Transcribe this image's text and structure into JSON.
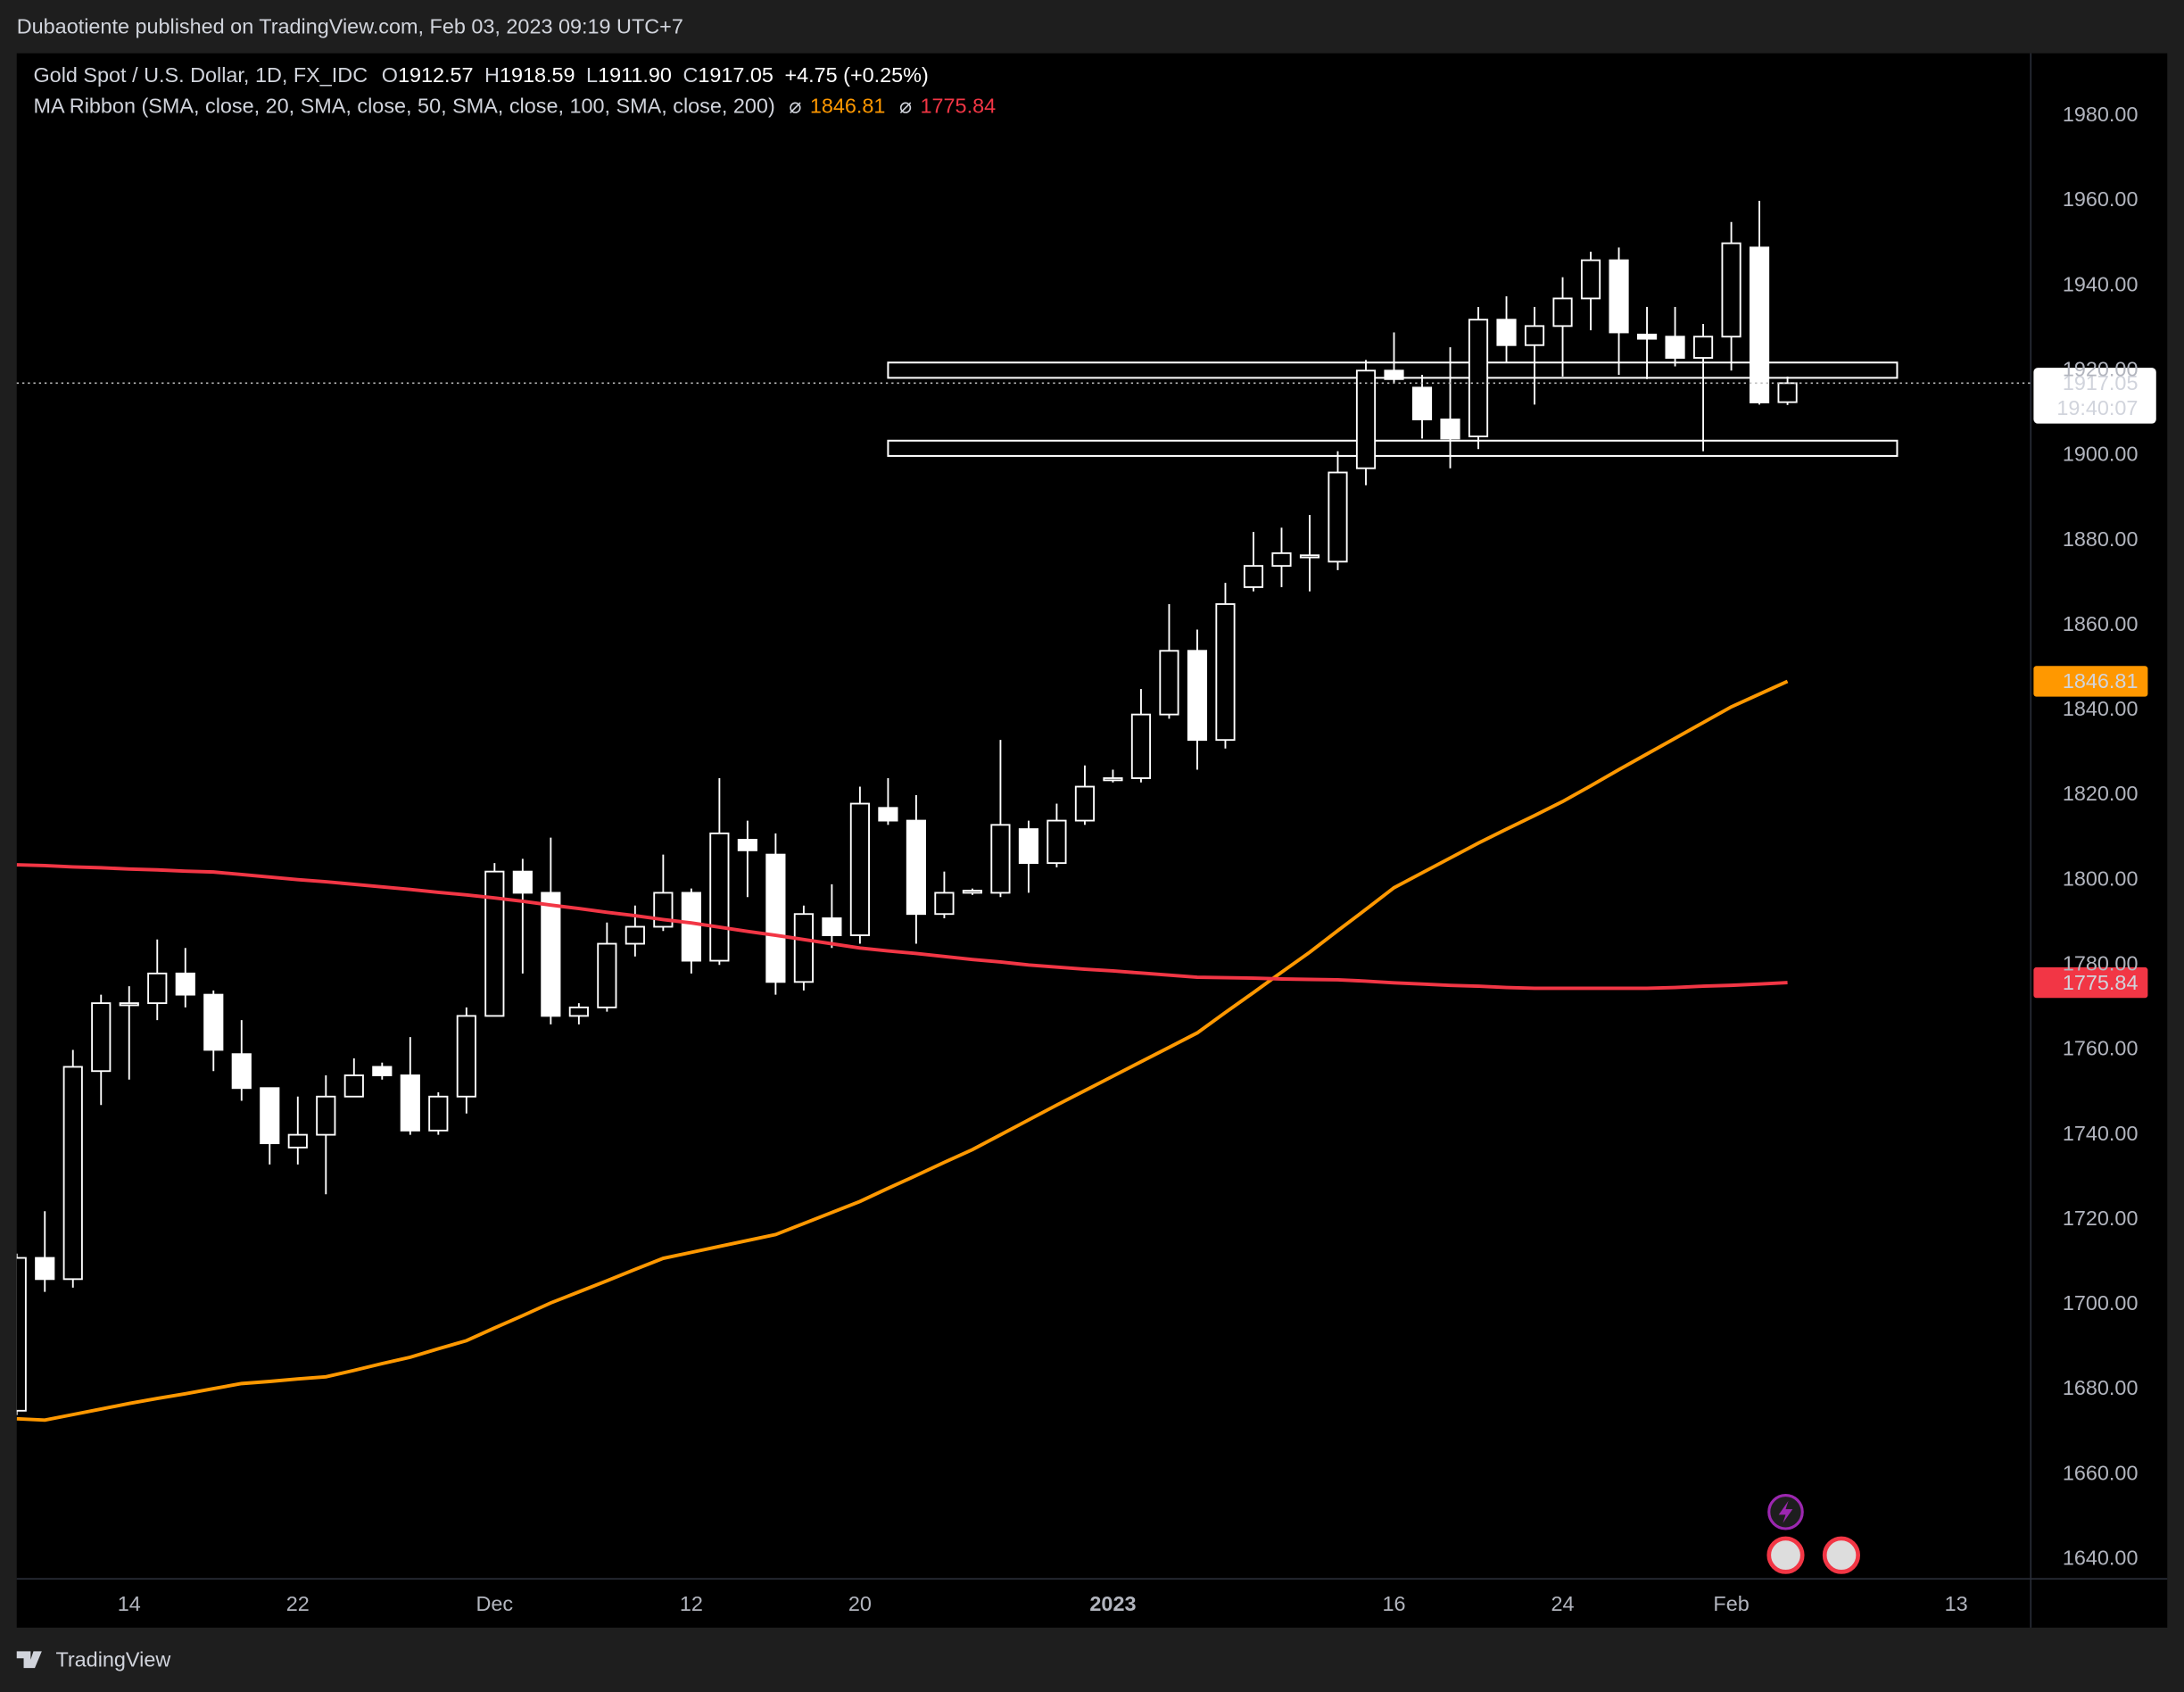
{
  "header": {
    "published": "Dubaotiente published on TradingView.com, Feb 03, 2023 09:19 UTC+7"
  },
  "footer": {
    "brand": "TradingView"
  },
  "chart_data": {
    "type": "candlestick",
    "symbol": "Gold Spot / U.S. Dollar, 1D, FX_IDC",
    "legend_keys": [
      "O",
      "H",
      "L",
      "C"
    ],
    "last_labels": [
      "1912.57",
      "1918.59",
      "1911.90",
      "1917.05"
    ],
    "change": "+4.75 (+0.25%)",
    "indicator": "MA Ribbon (SMA, close, 20, SMA, close, 50, SMA, close, 100, SMA, close, 200)",
    "indicator_symbol": "⌀",
    "countdown": "19:40:07",
    "up_color": "#000000",
    "down_color": "#ffffff",
    "categories": [
      null,
      null,
      null,
      null,
      "14",
      null,
      null,
      null,
      null,
      null,
      "22",
      null,
      null,
      null,
      null,
      null,
      null,
      "Dec",
      null,
      null,
      null,
      null,
      null,
      null,
      "12",
      null,
      null,
      null,
      null,
      null,
      "20",
      null,
      null,
      null,
      null,
      null,
      null,
      null,
      null,
      "2023",
      null,
      null,
      null,
      null,
      null,
      null,
      null,
      null,
      null,
      "16",
      null,
      null,
      null,
      null,
      null,
      "24",
      null,
      null,
      null,
      null,
      null,
      "Feb",
      null,
      null,
      null,
      null,
      null,
      null,
      null,
      "13"
    ],
    "open": [
      1675,
      1711,
      1706,
      1755,
      1771,
      1771,
      1778,
      1773,
      1759,
      1751,
      1737,
      1740,
      1749,
      1756,
      1754,
      1741,
      1749,
      1768,
      1802,
      1797,
      1768,
      1770,
      1785,
      1789,
      1797,
      1781,
      1809.5,
      1806,
      1776,
      1791,
      1787,
      1817,
      1814,
      1792,
      1797,
      1797,
      1812,
      1804,
      1814,
      1823.5,
      1824,
      1839,
      1854,
      1833,
      1869,
      1874,
      1876,
      1875,
      1897,
      1920,
      1916,
      1908.5,
      1904.5,
      1932,
      1926,
      1930.5,
      1937,
      1946,
      1928.5,
      1928,
      1923,
      1928,
      1949,
      1912.57,
      null,
      null,
      null,
      null,
      null,
      null
    ],
    "high": [
      1712,
      1722,
      1760,
      1773,
      1775,
      1786,
      1784,
      1774,
      1767,
      1751,
      1749,
      1754,
      1758,
      1757,
      1763,
      1750,
      1770,
      1804,
      1805,
      1810,
      1771,
      1790,
      1794,
      1806,
      1798,
      1824,
      1814,
      1811,
      1794,
      1799,
      1822,
      1824,
      1820,
      1802,
      1798,
      1833,
      1814,
      1818,
      1827,
      1826,
      1845,
      1865,
      1859,
      1870,
      1882,
      1883,
      1886,
      1901,
      1922.5,
      1929,
      1919,
      1925.5,
      1935,
      1937.5,
      1935,
      1942,
      1948,
      1949,
      1935,
      1935,
      1931,
      1955,
      1960,
      1918.59,
      null,
      null,
      null,
      null,
      null,
      null
    ],
    "low": [
      1674,
      1703,
      1704,
      1747,
      1753,
      1767,
      1770,
      1755,
      1748,
      1733,
      1733,
      1726,
      1749,
      1753,
      1740,
      1740,
      1745,
      1768,
      1778,
      1766,
      1766,
      1769,
      1782,
      1788,
      1778,
      1780,
      1796,
      1773,
      1774,
      1784,
      1785,
      1813,
      1785,
      1791,
      1796.5,
      1796,
      1797,
      1803,
      1813,
      1823,
      1823,
      1838,
      1826,
      1831,
      1868,
      1869,
      1868,
      1873,
      1893,
      1917,
      1904,
      1897,
      1901.5,
      1922,
      1912,
      1918.6,
      1929.5,
      1919,
      1918,
      1921,
      1901,
      1920,
      1912,
      1911.9,
      null,
      null,
      null,
      null,
      null,
      null
    ],
    "close": [
      1711,
      1706,
      1756,
      1771,
      1771,
      1778,
      1773,
      1760,
      1751,
      1738,
      1740,
      1749,
      1754,
      1754,
      1741,
      1749,
      1768,
      1802,
      1797,
      1768,
      1770,
      1785,
      1789,
      1797,
      1781,
      1811,
      1807,
      1776,
      1792,
      1787,
      1818,
      1814,
      1792,
      1797,
      1797.5,
      1813,
      1804,
      1814,
      1822,
      1824,
      1839,
      1854,
      1833,
      1865,
      1874,
      1877,
      1876.5,
      1896,
      1920,
      1918,
      1908.5,
      1904,
      1932,
      1926,
      1930.5,
      1937,
      1946,
      1929,
      1927.5,
      1923,
      1928,
      1950,
      1912.5,
      1917.05,
      null,
      null,
      null,
      null,
      null,
      null
    ],
    "series": [
      {
        "color": "#ff9800",
        "values": [
          1673.1,
          1672.8,
          1674.1,
          1675.4,
          1676.7,
          1677.9,
          1679.0,
          1680.2,
          1681.4,
          1681.9,
          1682.5,
          1683.0,
          1684.5,
          1686.1,
          1687.6,
          1689.6,
          1691.5,
          1694.5,
          1697.4,
          1700.4,
          1703.0,
          1705.6,
          1708.3,
          1710.9,
          1712.3,
          1713.7,
          1715.1,
          1716.5,
          1719.1,
          1721.7,
          1724.3,
          1727.4,
          1730.4,
          1733.5,
          1736.5,
          1740.0,
          1743.5,
          1747.0,
          1750.4,
          1753.8,
          1757.2,
          1760.6,
          1764.0,
          1768.8,
          1773.5,
          1778.3,
          1783.0,
          1788.1,
          1793.1,
          1798.2,
          1801.7,
          1805.2,
          1808.7,
          1812.0,
          1815.2,
          1818.5,
          1822.2,
          1826.0,
          1829.7,
          1833.4,
          1837.1,
          1840.8,
          1843.8,
          1846.81,
          null,
          null,
          null,
          null,
          null,
          null
        ]
      },
      {
        "color": "#f23645",
        "values": [
          1803.6,
          1803.4,
          1803.1,
          1802.9,
          1802.6,
          1802.4,
          1802.1,
          1801.9,
          1801.3,
          1800.7,
          1800.1,
          1799.6,
          1799.0,
          1798.4,
          1797.8,
          1797.1,
          1796.5,
          1795.8,
          1795.0,
          1794.1,
          1793.3,
          1792.4,
          1791.6,
          1790.7,
          1789.9,
          1788.9,
          1787.9,
          1787.0,
          1786.0,
          1785.0,
          1784.0,
          1783.3,
          1782.7,
          1782.0,
          1781.3,
          1780.7,
          1780.0,
          1779.5,
          1779.0,
          1778.6,
          1778.1,
          1777.6,
          1777.1,
          1777.0,
          1776.9,
          1776.7,
          1776.6,
          1776.5,
          1776.2,
          1775.8,
          1775.5,
          1775.2,
          1775.0,
          1774.7,
          1774.5,
          1774.5,
          1774.5,
          1774.5,
          1774.5,
          1774.7,
          1775.0,
          1775.2,
          1775.5,
          1775.84,
          null,
          null,
          null,
          null,
          null,
          null
        ]
      }
    ],
    "zones": [
      {
        "top": 1921.9,
        "bottom": 1918.3
      },
      {
        "top": 1903.5,
        "bottom": 1899.9
      }
    ],
    "ylim": [
      1635.4,
      1994.1
    ],
    "yticks": [
      {
        "value": 1640,
        "label": "1640.00"
      },
      {
        "value": 1660,
        "label": "1660.00"
      },
      {
        "value": 1680,
        "label": "1680.00"
      },
      {
        "value": 1700,
        "label": "1700.00"
      },
      {
        "value": 1720,
        "label": "1720.00"
      },
      {
        "value": 1740,
        "label": "1740.00"
      },
      {
        "value": 1760,
        "label": "1760.00"
      },
      {
        "value": 1780,
        "label": "1780.00"
      },
      {
        "value": 1800,
        "label": "1800.00"
      },
      {
        "value": 1820,
        "label": "1820.00"
      },
      {
        "value": 1840,
        "label": "1840.00"
      },
      {
        "value": 1860,
        "label": "1860.00"
      },
      {
        "value": 1880,
        "label": "1880.00"
      },
      {
        "value": 1900,
        "label": "1900.00"
      },
      {
        "value": 1920,
        "label": "1920.00"
      },
      {
        "value": 1940,
        "label": "1940.00"
      },
      {
        "value": 1960,
        "label": "1960.00"
      },
      {
        "value": 1980,
        "label": "1980.00"
      }
    ],
    "grid": false
  }
}
